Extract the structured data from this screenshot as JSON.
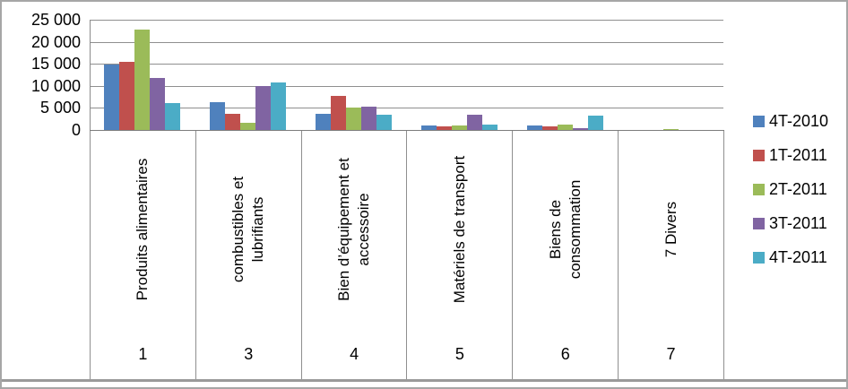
{
  "chart_data": {
    "type": "bar",
    "title": "",
    "xlabel": "",
    "ylabel": "",
    "categories": [
      "Produits alimentaires",
      "combustibles et\nlubrifiants",
      "Bien d’équipement et\naccessoire",
      "Matériels de transport",
      "Biens de\nconsommation",
      "7 Divers"
    ],
    "category_numbers": [
      "1",
      "3",
      "4",
      "5",
      "6",
      "7"
    ],
    "series": [
      {
        "name": "4T-2010",
        "color": "#4F81BD",
        "values": [
          14900,
          6200,
          3600,
          1100,
          1000,
          0
        ]
      },
      {
        "name": "1T-2011",
        "color": "#C0504D",
        "values": [
          15500,
          3700,
          7800,
          900,
          900,
          0
        ]
      },
      {
        "name": "2T-2011",
        "color": "#9BBB59",
        "values": [
          22800,
          1700,
          5000,
          1000,
          1200,
          250
        ]
      },
      {
        "name": "3T-2011",
        "color": "#8064A2",
        "values": [
          11700,
          10000,
          5300,
          3500,
          500,
          0
        ]
      },
      {
        "name": "4T-2011",
        "color": "#4BACC6",
        "values": [
          6100,
          10700,
          3400,
          1300,
          3300,
          0
        ]
      }
    ],
    "y_axis": {
      "min": 0,
      "max": 25000,
      "tick_step": 5000,
      "tick_labels": [
        "0",
        "5 000",
        "10 000",
        "15 000",
        "20 000",
        "25 000"
      ]
    },
    "grid": true,
    "legend_position": "right",
    "colors": {
      "gridline": "#8f8f8f",
      "axis": "#7d7d7d",
      "text": "#000000",
      "frame_border": "#a6a6a6"
    }
  }
}
